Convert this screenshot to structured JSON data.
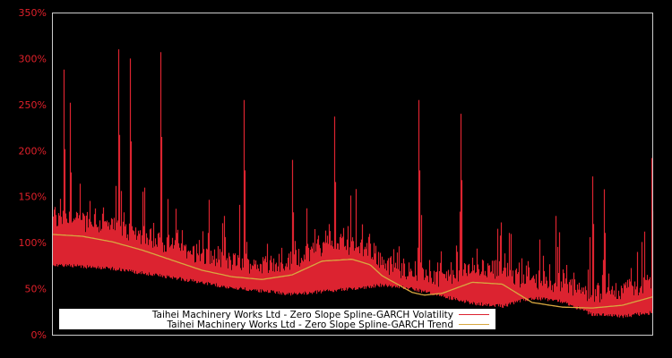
{
  "chart_data": {
    "type": "line",
    "title": "",
    "xlabel": "",
    "ylabel": "",
    "ylim": [
      0,
      350
    ],
    "y_ticks": [
      "0%",
      "50%",
      "100%",
      "150%",
      "200%",
      "250%",
      "300%",
      "350%"
    ],
    "x_ticks": [],
    "grid": false,
    "background": "#000000",
    "legend_position": "lower-left",
    "series": [
      {
        "name": "Taihei Machinery Works Ltd - Zero Slope Spline-GARCH Volatility",
        "color": "#dc2330",
        "style": "spiky volatility band",
        "baseline_floor_pct": [
          [
            0,
            80
          ],
          [
            0.1,
            76
          ],
          [
            0.2,
            66
          ],
          [
            0.3,
            55
          ],
          [
            0.4,
            48
          ],
          [
            0.5,
            54
          ],
          [
            0.55,
            58
          ],
          [
            0.6,
            54
          ],
          [
            0.7,
            38
          ],
          [
            0.75,
            35
          ],
          [
            0.8,
            44
          ],
          [
            0.85,
            40
          ],
          [
            0.9,
            26
          ],
          [
            0.95,
            24
          ],
          [
            1.0,
            28
          ]
        ],
        "notable_spikes_pct": [
          [
            0.02,
            288
          ],
          [
            0.03,
            252
          ],
          [
            0.11,
            310
          ],
          [
            0.13,
            300
          ],
          [
            0.18,
            307
          ],
          [
            0.32,
            255
          ],
          [
            0.4,
            190
          ],
          [
            0.47,
            237
          ],
          [
            0.61,
            255
          ],
          [
            0.68,
            240
          ],
          [
            0.9,
            172
          ],
          [
            0.92,
            158
          ],
          [
            1.0,
            192
          ]
        ]
      },
      {
        "name": "Taihei Machinery Works Ltd - Zero Slope Spline-GARCH Trend",
        "color": "#d8a840",
        "x_frac": [
          0.0,
          0.05,
          0.1,
          0.15,
          0.2,
          0.25,
          0.3,
          0.35,
          0.4,
          0.43,
          0.45,
          0.5,
          0.53,
          0.55,
          0.6,
          0.62,
          0.65,
          0.7,
          0.75,
          0.8,
          0.85,
          0.9,
          0.95,
          1.0
        ],
        "values": [
          109,
          107,
          101,
          92,
          81,
          70,
          63,
          60,
          65,
          74,
          80,
          82,
          76,
          64,
          46,
          43,
          45,
          57,
          55,
          35,
          30,
          29,
          32,
          41
        ]
      }
    ]
  },
  "legend": {
    "items": [
      {
        "label": "Taihei Machinery Works Ltd - Zero Slope Spline-GARCH Volatility",
        "color": "#dc2330"
      },
      {
        "label": "Taihei Machinery Works Ltd - Zero Slope Spline-GARCH Trend",
        "color": "#d8a840"
      }
    ]
  }
}
